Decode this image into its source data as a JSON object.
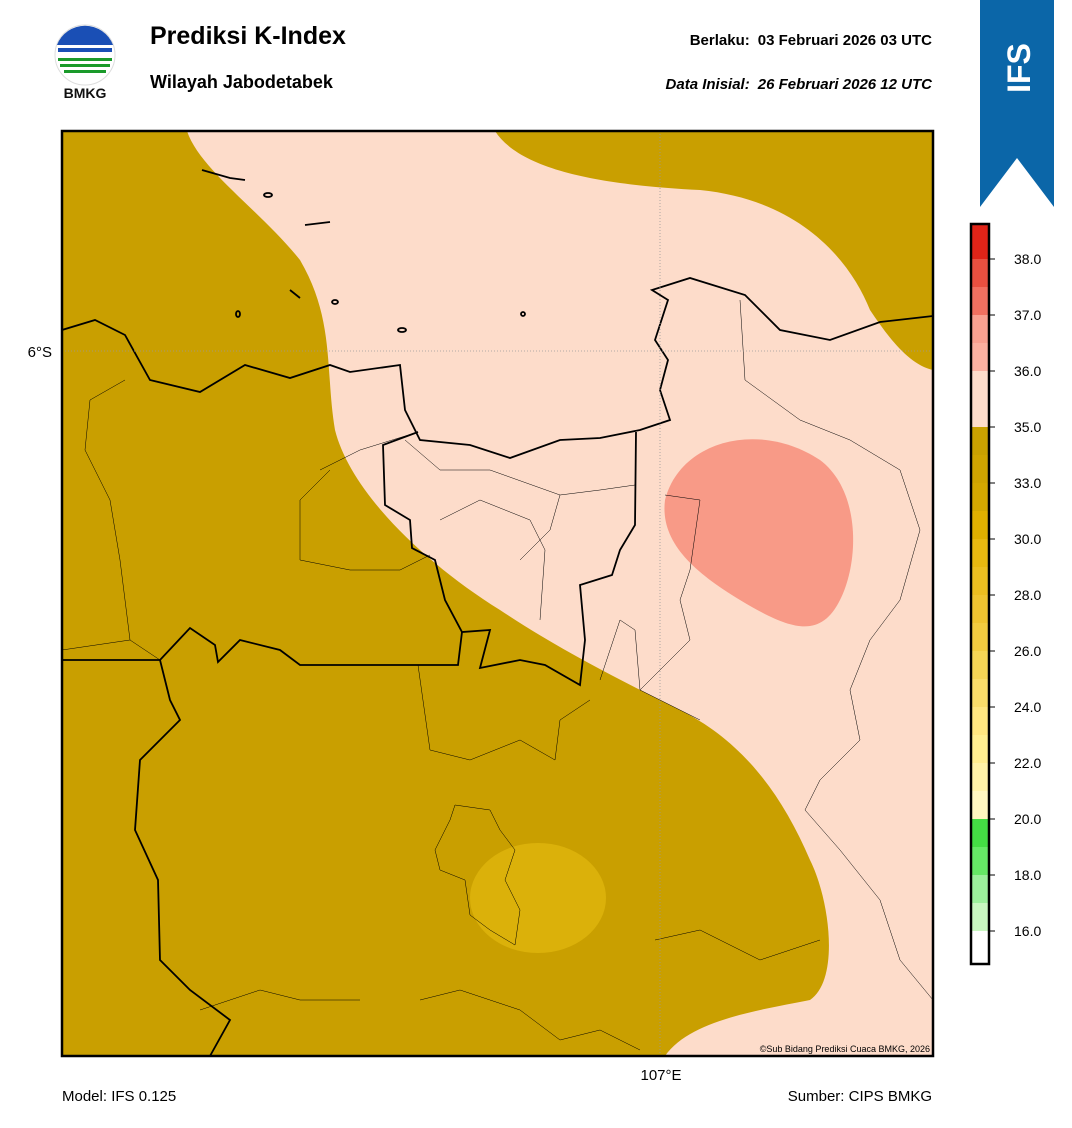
{
  "header": {
    "title": "Prediksi K-Index",
    "subtitle": "Wilayah Jabodetabek",
    "valid_label": "Berlaku:",
    "valid_time": "03 Februari 2026 03 UTC",
    "init_label": "Data Inisial:",
    "init_time": "26 Februari 2026 12 UTC",
    "logo_text": "BMKG",
    "badge": "IFS"
  },
  "map": {
    "lat_label": "6°S",
    "lon_label": "107°E",
    "credit": "©Sub Bidang Prediksi Cuaca BMKG, 2026"
  },
  "colorbar": {
    "colors": [
      "#ffffff",
      "#c8f7c0",
      "#9cf09c",
      "#66e866",
      "#44dd44",
      "#fff7c0",
      "#fff3a8",
      "#ffee90",
      "#ffe680",
      "#fadd6a",
      "#f5d555",
      "#f2cc40",
      "#efc430",
      "#ecbe20",
      "#e8b810",
      "#e0b000",
      "#d4a800",
      "#cfa400",
      "#c9a000",
      "#fddcca",
      "#fddcca",
      "#fbb0a0",
      "#f8a090",
      "#f07060",
      "#e85040",
      "#e02418"
    ],
    "ticks": [
      {
        "value": 16,
        "label": "16.0"
      },
      {
        "value": 18,
        "label": "18.0"
      },
      {
        "value": 20,
        "label": "20.0"
      },
      {
        "value": 22,
        "label": "22.0"
      },
      {
        "value": 24,
        "label": "24.0"
      },
      {
        "value": 26,
        "label": "26.0"
      },
      {
        "value": 28,
        "label": "28.0"
      },
      {
        "value": 30,
        "label": "30.0"
      },
      {
        "value": 33,
        "label": "33.0"
      },
      {
        "value": 35,
        "label": "35.0"
      },
      {
        "value": 36,
        "label": "36.0"
      },
      {
        "value": 37,
        "label": "37.0"
      },
      {
        "value": 38,
        "label": "38.0"
      }
    ]
  },
  "footer": {
    "model": "Model: IFS 0.125",
    "source": "Sumber: CIPS BMKG"
  }
}
